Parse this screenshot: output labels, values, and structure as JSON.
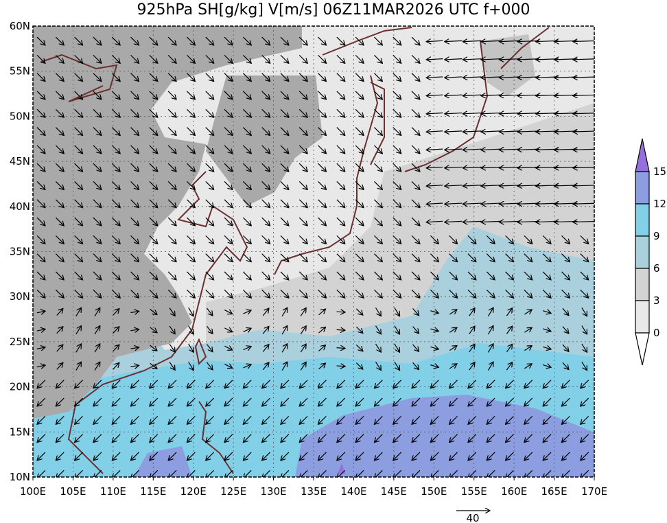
{
  "title": "925hPa SH[g/kg] V[m/s] 06Z11MAR2026 UTC f+000",
  "map": {
    "projection": "equirectangular",
    "lon_range": [
      100,
      170
    ],
    "lat_range": [
      10,
      60
    ],
    "gridlines": true,
    "coastline_color": "#6b2f2f",
    "land_mask_color": "#a9a9a9",
    "lon_labels": [
      "100E",
      "105E",
      "110E",
      "115E",
      "120E",
      "125E",
      "130E",
      "135E",
      "140E",
      "145E",
      "150E",
      "155E",
      "160E",
      "165E",
      "170E"
    ],
    "lat_labels": [
      "10N",
      "15N",
      "20N",
      "25N",
      "30N",
      "35N",
      "40N",
      "45N",
      "50N",
      "55N",
      "60N"
    ]
  },
  "colorbar": {
    "variable": "SH[g/kg]",
    "levels": [
      "0",
      "3",
      "6",
      "9",
      "12",
      "15"
    ],
    "colors": {
      "under": "#ffffff",
      "0-3": "#e8e8e8",
      "3-6": "#d3d3d3",
      "6-9": "#aad0de",
      "9-12": "#82cfe8",
      "12-15": "#8c9ee0",
      "over": "#9370db"
    },
    "extend": "both"
  },
  "wind_key": {
    "value": "40",
    "units": "m/s"
  }
}
